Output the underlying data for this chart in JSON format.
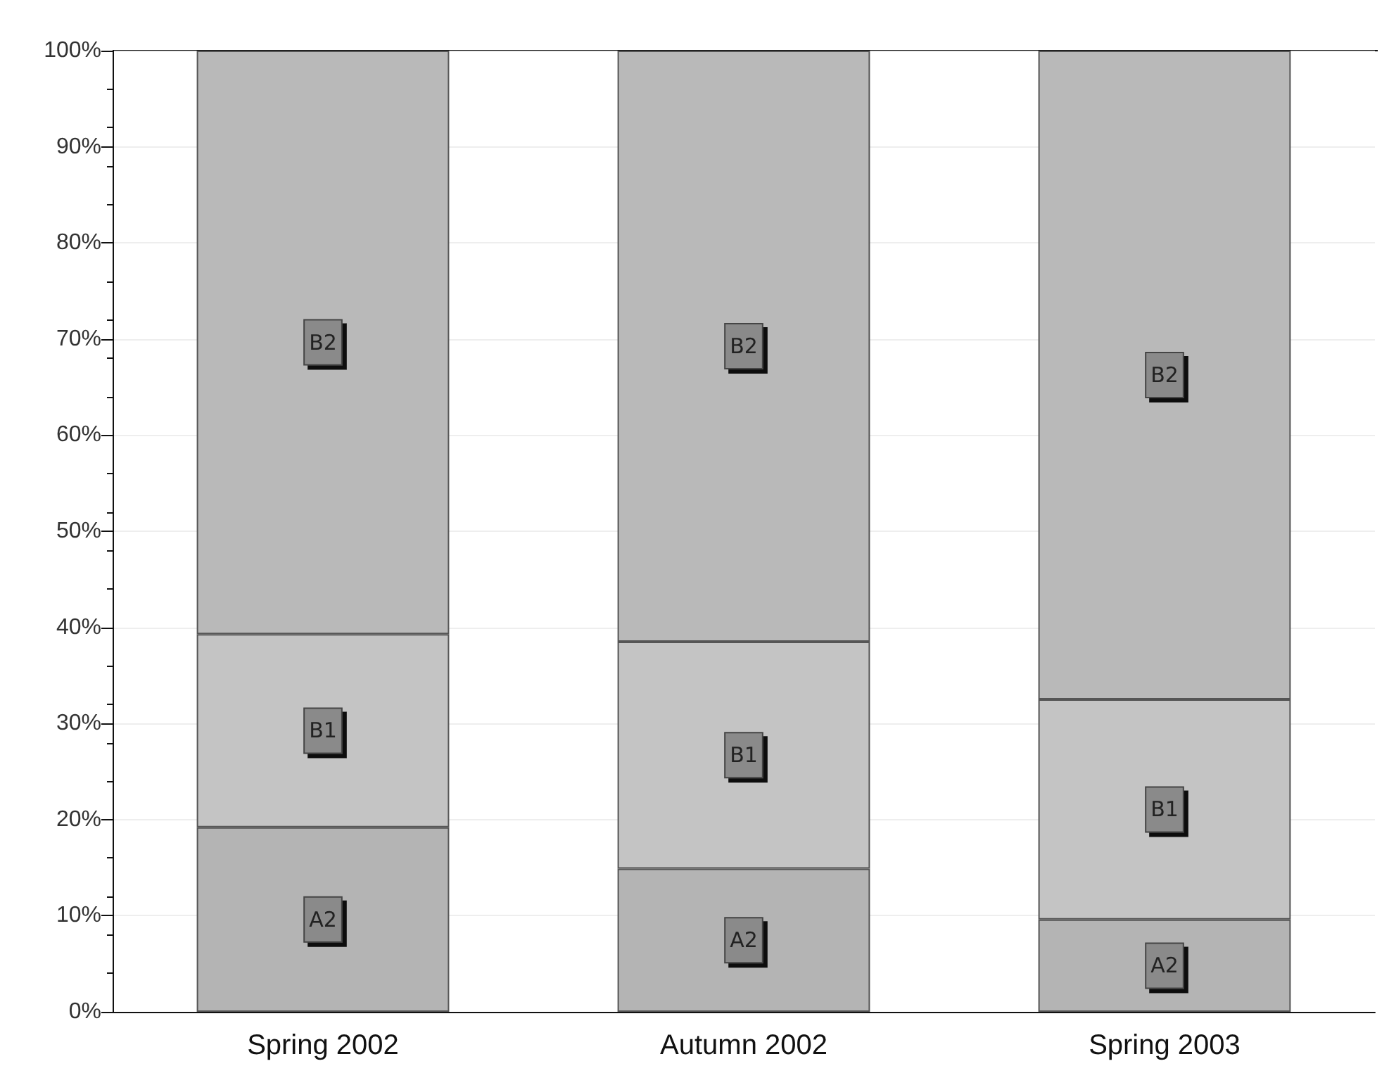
{
  "chart_data": {
    "type": "bar",
    "stacked": true,
    "categories": [
      "Spring 2002",
      "Autumn 2002",
      "Spring 2003"
    ],
    "series": [
      {
        "name": "A2",
        "color": "#b4b4b4",
        "values": [
          19.2,
          14.9,
          9.6
        ]
      },
      {
        "name": "B1",
        "color": "#c4c4c4",
        "values": [
          20.1,
          23.6,
          22.9
        ]
      },
      {
        "name": "B2",
        "color": "#b9b9b9",
        "values": [
          60.7,
          61.5,
          67.5
        ]
      }
    ],
    "ylim": [
      0,
      100
    ],
    "yticks": [
      {
        "value": 0,
        "label": "0%"
      },
      {
        "value": 10,
        "label": "10%"
      },
      {
        "value": 20,
        "label": "20%"
      },
      {
        "value": 30,
        "label": "30%"
      },
      {
        "value": 40,
        "label": "40%"
      },
      {
        "value": 50,
        "label": "50%"
      },
      {
        "value": 60,
        "label": "60%"
      },
      {
        "value": 70,
        "label": "70%"
      },
      {
        "value": 80,
        "label": "80%"
      },
      {
        "value": 90,
        "label": "90%"
      },
      {
        "value": 100,
        "label": "100%"
      }
    ],
    "grid": "y",
    "legend": false
  }
}
